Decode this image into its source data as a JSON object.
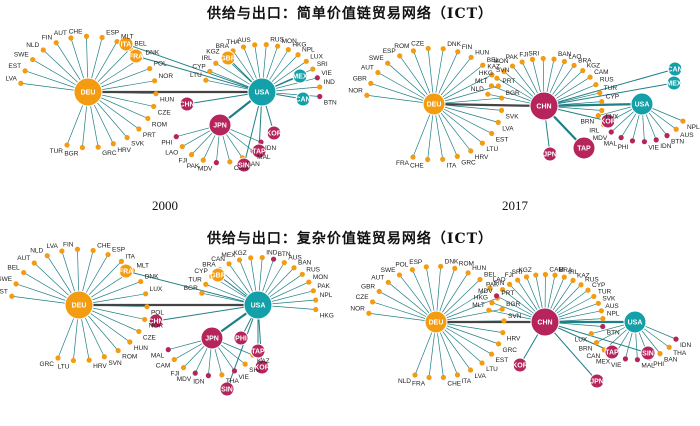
{
  "titles": {
    "simple": "供给与出口：简单价值链贸易网络（ICT）",
    "complex": "供给与出口：复杂价值链贸易网络（ICT）"
  },
  "colors": {
    "deu": "#f39c12",
    "usa": "#14a0a8",
    "asia": "#b5245a",
    "edge": "#1f7f86",
    "edge_in": "#444444"
  },
  "panels": [
    {
      "id": "simple-2000",
      "year": "2000",
      "hubs": [
        {
          "code": "DEU",
          "group": "deu",
          "size": 3
        },
        {
          "code": "USA",
          "group": "usa",
          "size": 3
        },
        {
          "code": "JPN",
          "group": "asia",
          "size": 2
        },
        {
          "code": "GBR",
          "group": "deu",
          "size": 1
        },
        {
          "code": "MEX",
          "group": "usa",
          "size": 1
        },
        {
          "code": "CAN",
          "group": "usa",
          "size": 1
        },
        {
          "code": "CHN",
          "group": "asia",
          "size": 1
        },
        {
          "code": "KOR",
          "group": "asia",
          "size": 1
        },
        {
          "code": "TAP",
          "group": "asia",
          "size": 1
        },
        {
          "code": "SIN",
          "group": "asia",
          "size": 1
        },
        {
          "code": "ITA",
          "group": "deu",
          "size": 1
        },
        {
          "code": "FRA",
          "group": "deu",
          "size": 1
        }
      ],
      "leaves": [
        "LVA",
        "EST",
        "SWE",
        "NLD",
        "FIN",
        "AUT",
        "CHE",
        "ESP",
        "MLT",
        "BEL",
        "DNK",
        "POL",
        "NOR",
        "HUN",
        "CZE",
        "ROM",
        "PRT",
        "SVK",
        "HRV",
        "GRC",
        "BGR",
        "TUR",
        "LTU",
        "CYP",
        "IRL",
        "KGZ",
        "BRA",
        "THA",
        "AUS",
        "RUS",
        "MON",
        "HKG",
        "NPL",
        "LUX",
        "SRI",
        "VIE",
        "IND",
        "BTN",
        "IDN",
        "MAL",
        "BAN",
        "CAM",
        "MDV",
        "PAK",
        "FJI",
        "LAO",
        "PHI"
      ]
    },
    {
      "id": "simple-2017",
      "year": "2017",
      "hubs": [
        {
          "code": "DEU",
          "group": "deu",
          "size": 2
        },
        {
          "code": "CHN",
          "group": "asia",
          "size": 3
        },
        {
          "code": "USA",
          "group": "usa",
          "size": 2
        },
        {
          "code": "KOR",
          "group": "asia",
          "size": 1
        },
        {
          "code": "TAP",
          "group": "asia",
          "size": 2
        },
        {
          "code": "JPN",
          "group": "asia",
          "size": 1
        },
        {
          "code": "CAN",
          "group": "usa",
          "size": 1
        },
        {
          "code": "MEX",
          "group": "usa",
          "size": 1
        }
      ],
      "leaves": [
        "NOR",
        "GBR",
        "AUT",
        "SWE",
        "ESP",
        "ROM",
        "CZE",
        "DNK",
        "FIN",
        "HUN",
        "BEL",
        "SVN",
        "PRT",
        "BGR",
        "SVK",
        "LVA",
        "EST",
        "LTU",
        "HRV",
        "GRC",
        "ITA",
        "CHE",
        "FRA",
        "NLD",
        "MLT",
        "HKG",
        "KAZ",
        "MON",
        "PAK",
        "FJI",
        "SRI",
        "BAN",
        "LAO",
        "BRA",
        "KGZ",
        "CAM",
        "RUS",
        "TUR",
        "CYP",
        "LUX",
        "NPL",
        "AUS",
        "BTN",
        "IDN",
        "VIE",
        "PHI",
        "MAL",
        "MDV",
        "IRL",
        "BRN"
      ]
    },
    {
      "id": "complex-2000",
      "year": "2000",
      "hubs": [
        {
          "code": "DEU",
          "group": "deu",
          "size": 3
        },
        {
          "code": "USA",
          "group": "usa",
          "size": 3
        },
        {
          "code": "JPN",
          "group": "asia",
          "size": 2
        },
        {
          "code": "GBR",
          "group": "deu",
          "size": 1
        },
        {
          "code": "FRA",
          "group": "deu",
          "size": 1
        },
        {
          "code": "CHN",
          "group": "asia",
          "size": 1
        },
        {
          "code": "KOR",
          "group": "asia",
          "size": 1
        },
        {
          "code": "TAP",
          "group": "asia",
          "size": 1
        },
        {
          "code": "SIN",
          "group": "asia",
          "size": 1
        },
        {
          "code": "PHI",
          "group": "asia",
          "size": 1
        }
      ],
      "leaves": [
        "EST",
        "SWE",
        "BEL",
        "AUT",
        "NLD",
        "LVA",
        "FIN",
        "CHE",
        "ESP",
        "ITA",
        "MLT",
        "DNK",
        "LUX",
        "POL",
        "NOR",
        "CZE",
        "HUN",
        "ROM",
        "SVN",
        "HRV",
        "LTU",
        "GRC",
        "BGR",
        "TUR",
        "CYP",
        "BRA",
        "CAN",
        "MEX",
        "KGZ",
        "IND",
        "BTN",
        "AUS",
        "BAN",
        "RUS",
        "MON",
        "PAK",
        "NPL",
        "HKG",
        "KAZ",
        "SRI",
        "VIE",
        "THA",
        "IDN",
        "MDV",
        "FJI",
        "CAM",
        "MAL"
      ]
    },
    {
      "id": "complex-2017",
      "year": "2017",
      "hubs": [
        {
          "code": "DEU",
          "group": "deu",
          "size": 2
        },
        {
          "code": "CHN",
          "group": "asia",
          "size": 3
        },
        {
          "code": "USA",
          "group": "usa",
          "size": 2
        },
        {
          "code": "KOR",
          "group": "asia",
          "size": 1
        },
        {
          "code": "TAP",
          "group": "asia",
          "size": 1
        },
        {
          "code": "JPN",
          "group": "asia",
          "size": 1
        },
        {
          "code": "SIN",
          "group": "asia",
          "size": 1
        }
      ],
      "leaves": [
        "NOR",
        "CZE",
        "GBR",
        "AUT",
        "SWE",
        "POL",
        "ESP",
        "DNK",
        "ROM",
        "HUN",
        "BEL",
        "FIN",
        "PRT",
        "BGR",
        "SVN",
        "HRV",
        "GRC",
        "EST",
        "LTU",
        "LVA",
        "ITA",
        "CHE",
        "FRA",
        "NLD",
        "MLT",
        "HKG",
        "MDV",
        "PAK",
        "LAO",
        "FJI",
        "SRI",
        "KGZ",
        "CAM",
        "BRA",
        "IRL",
        "KAZ",
        "RUS",
        "CYP",
        "TUR",
        "SVK",
        "AUS",
        "NPL",
        "BTN",
        "IDN",
        "THA",
        "BAN",
        "PHI",
        "MAL",
        "VIE",
        "MEX",
        "CAN",
        "BRN",
        "LUX"
      ]
    }
  ]
}
